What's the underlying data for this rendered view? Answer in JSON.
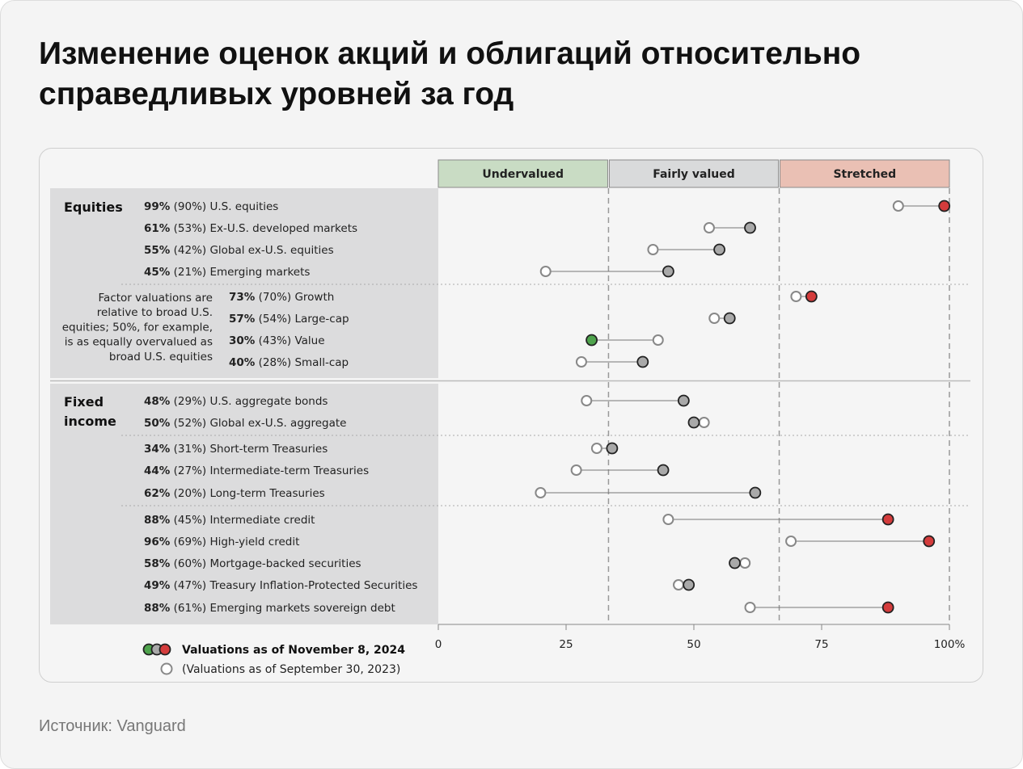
{
  "title": "Изменение оценок акций и облигаций относительно справедливых уровней за год",
  "source": "Источник: Vanguard",
  "chart_data": {
    "type": "dumbbell",
    "zones": [
      {
        "label": "Undervalued",
        "range": [
          0,
          33.3
        ],
        "color": "#c9dcc4"
      },
      {
        "label": "Fairly valued",
        "range": [
          33.3,
          66.7
        ],
        "color": "#d9dadb"
      },
      {
        "label": "Stretched",
        "range": [
          66.7,
          100
        ],
        "color": "#eac0b4"
      }
    ],
    "xlim": [
      0,
      100
    ],
    "xticks": [
      "0",
      "25",
      "50",
      "75",
      "100%"
    ],
    "xtick_values": [
      0,
      25,
      50,
      75,
      100
    ],
    "colors": {
      "red": "#d43c3c",
      "gray": "#a9a9a9",
      "green": "#4ea34c",
      "prior": "#ffffff"
    },
    "groups": [
      {
        "label": "Equities",
        "rows": [
          {
            "cur": 99,
            "prev": 90,
            "name": "U.S. equities",
            "cur_label": "99%",
            "prev_label": "(90%)"
          },
          {
            "cur": 61,
            "prev": 53,
            "name": "Ex-U.S. developed markets",
            "cur_label": "61%",
            "prev_label": "(53%)"
          },
          {
            "cur": 55,
            "prev": 42,
            "name": "Global ex-U.S. equities",
            "cur_label": "55%",
            "prev_label": "(42%)"
          },
          {
            "cur": 45,
            "prev": 21,
            "name": "Emerging markets",
            "cur_label": "45%",
            "prev_label": "(21%)",
            "sep_after": true
          },
          {
            "cur": 73,
            "prev": 70,
            "name": "Growth",
            "cur_label": "73%",
            "prev_label": "(70%)",
            "factor": true
          },
          {
            "cur": 57,
            "prev": 54,
            "name": "Large-cap",
            "cur_label": "57%",
            "prev_label": "(54%)",
            "factor": true
          },
          {
            "cur": 30,
            "prev": 43,
            "name": "Value",
            "cur_label": "30%",
            "prev_label": "(43%)",
            "factor": true
          },
          {
            "cur": 40,
            "prev": 28,
            "name": "Small-cap",
            "cur_label": "40%",
            "prev_label": "(28%)",
            "factor": true
          }
        ]
      },
      {
        "label": "Fixed income",
        "rows": [
          {
            "cur": 48,
            "prev": 29,
            "name": "U.S. aggregate bonds",
            "cur_label": "48%",
            "prev_label": "(29%)"
          },
          {
            "cur": 50,
            "prev": 52,
            "name": "Global ex-U.S. aggregate",
            "cur_label": "50%",
            "prev_label": "(52%)",
            "sep_after": true
          },
          {
            "cur": 34,
            "prev": 31,
            "name": "Short-term Treasuries",
            "cur_label": "34%",
            "prev_label": "(31%)"
          },
          {
            "cur": 44,
            "prev": 27,
            "name": "Intermediate-term Treasuries",
            "cur_label": "44%",
            "prev_label": "(27%)"
          },
          {
            "cur": 62,
            "prev": 20,
            "name": "Long-term Treasuries",
            "cur_label": "62%",
            "prev_label": "(20%)",
            "sep_after": true
          },
          {
            "cur": 88,
            "prev": 45,
            "name": "Intermediate credit",
            "cur_label": "88%",
            "prev_label": "(45%)"
          },
          {
            "cur": 96,
            "prev": 69,
            "name": "High-yield credit",
            "cur_label": "96%",
            "prev_label": "(69%)"
          },
          {
            "cur": 58,
            "prev": 60,
            "name": "Mortgage-backed securities",
            "cur_label": "58%",
            "prev_label": "(60%)"
          },
          {
            "cur": 49,
            "prev": 47,
            "name": "Treasury Inflation-Protected Securities",
            "cur_label": "49%",
            "prev_label": "(47%)"
          },
          {
            "cur": 88,
            "prev": 61,
            "name": "Emerging markets sovereign debt",
            "cur_label": "88%",
            "prev_label": "(61%)"
          }
        ]
      }
    ],
    "factor_note": [
      "Factor valuations are",
      "relative to broad U.S.",
      "equities; 50%, for example,",
      "is as equally overvalued as",
      "broad U.S. equities"
    ],
    "legend": {
      "current": "Valuations as of November 8, 2024",
      "prior": "(Valuations as of September 30, 2023)"
    }
  }
}
